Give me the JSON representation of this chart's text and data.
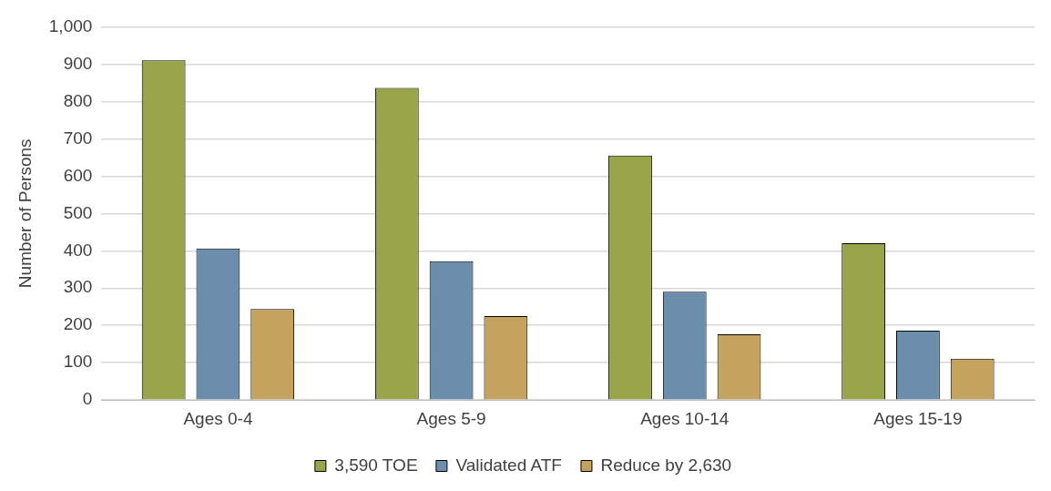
{
  "chart_data": {
    "type": "bar",
    "ylabel": "Number of Persons",
    "categories": [
      "Ages 0-4",
      "Ages 5-9",
      "Ages 10-14",
      "Ages 15-19"
    ],
    "series": [
      {
        "name": "3,590 TOE",
        "color": "#98a548",
        "values": [
          910,
          836,
          655,
          420
        ]
      },
      {
        "name": "Validated ATF",
        "color": "#6a8eab",
        "values": [
          406,
          372,
          290,
          186
        ]
      },
      {
        "name": "Reduce by 2,630",
        "color": "#c4a35e",
        "values": [
          244,
          225,
          176,
          111
        ]
      }
    ],
    "ylim": [
      0,
      1000
    ],
    "yticks": [
      0,
      100,
      200,
      300,
      400,
      500,
      600,
      700,
      800,
      900,
      {
        "value": 1000,
        "label": "1,000"
      }
    ],
    "grid": "y",
    "legend": "bottom"
  }
}
